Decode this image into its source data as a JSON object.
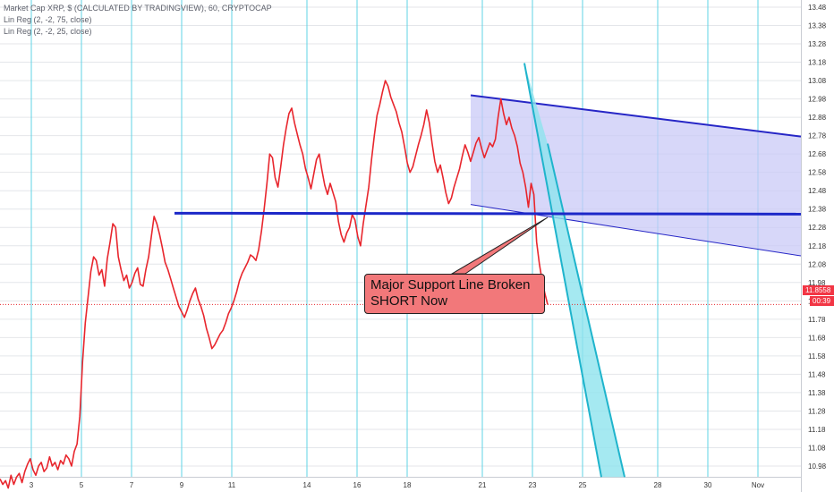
{
  "legend": {
    "main": "Market Cap XRP, $ (CALCULATED BY TRADINGVIEW), 60, CRYPTOCAP",
    "ind1": "Lin Reg (2, -2, 75, close)",
    "ind2": "Lin Reg (2, -2, 25, close)"
  },
  "annotation": {
    "line1": "Major Support Line Broken",
    "line2": "SHORT Now"
  },
  "price_tag": "11.8558",
  "time_tag": "00:39",
  "colors": {
    "price": "#e8262d",
    "grid": "#5fd3e6",
    "support": "#1c28c8",
    "channel_fill": "#c9c9f7",
    "cyan_fill": "#8ee3ee",
    "callout": "#f2787a"
  },
  "chart_data": {
    "type": "line",
    "series": [
      {
        "values": [
          10.91,
          10.88,
          10.9,
          10.86,
          10.93,
          10.88,
          10.92,
          10.94,
          10.89,
          10.95,
          10.99,
          11.02,
          10.96,
          10.93,
          10.98,
          11.0,
          10.95,
          10.97,
          11.03,
          10.98,
          11.0,
          10.96,
          11.01,
          10.99,
          11.04,
          11.02,
          10.98,
          11.06,
          11.1,
          11.25,
          11.55,
          11.76,
          11.9,
          12.04,
          12.12,
          12.1,
          12.02,
          12.05,
          11.96,
          12.11,
          12.2,
          12.3,
          12.28,
          12.12,
          12.05,
          11.99,
          12.02,
          11.95,
          11.98,
          12.03,
          12.06,
          11.97,
          11.96,
          12.05,
          12.12,
          12.23,
          12.34,
          12.3,
          12.24,
          12.17,
          12.09,
          12.05,
          12.0,
          11.95,
          11.9,
          11.85,
          11.82,
          11.79,
          11.83,
          11.88,
          11.92,
          11.95,
          11.89,
          11.85,
          11.8,
          11.73,
          11.68,
          11.62,
          11.64,
          11.67,
          11.7,
          11.72,
          11.76,
          11.81,
          11.84,
          11.88,
          11.93,
          11.99,
          12.03,
          12.06,
          12.09,
          12.13,
          12.12,
          12.1,
          12.16,
          12.26,
          12.38,
          12.52,
          12.68,
          12.66,
          12.55,
          12.5,
          12.61,
          12.73,
          12.82,
          12.9,
          12.93,
          12.85,
          12.79,
          12.73,
          12.68,
          12.6,
          12.55,
          12.49,
          12.57,
          12.65,
          12.68,
          12.59,
          12.51,
          12.46,
          12.52,
          12.47,
          12.42,
          12.31,
          12.24,
          12.2,
          12.25,
          12.28,
          12.35,
          12.32,
          12.23,
          12.18,
          12.3,
          12.4,
          12.5,
          12.65,
          12.78,
          12.89,
          12.95,
          13.02,
          13.08,
          13.05,
          12.99,
          12.95,
          12.91,
          12.85,
          12.8,
          12.72,
          12.63,
          12.58,
          12.61,
          12.67,
          12.73,
          12.78,
          12.84,
          12.92,
          12.85,
          12.74,
          12.64,
          12.58,
          12.62,
          12.55,
          12.47,
          12.41,
          12.44,
          12.5,
          12.55,
          12.6,
          12.67,
          12.73,
          12.69,
          12.64,
          12.69,
          12.74,
          12.77,
          12.71,
          12.66,
          12.7,
          12.74,
          12.72,
          12.76,
          12.88,
          12.98,
          12.9,
          12.84,
          12.88,
          12.82,
          12.78,
          12.72,
          12.63,
          12.58,
          12.5,
          12.39,
          12.52,
          12.46,
          12.2,
          12.08,
          11.99,
          11.92,
          11.86
        ]
      }
    ],
    "x_ticks": [
      "3",
      "5",
      "7",
      "9",
      "11",
      "14",
      "16",
      "18",
      "21",
      "23",
      "25",
      "28",
      "30",
      "Nov"
    ],
    "y_ticks": [
      "13.48",
      "13.38",
      "13.28",
      "13.18",
      "13.08",
      "12.98",
      "12.88",
      "12.78",
      "12.68",
      "12.58",
      "12.48",
      "12.38",
      "12.28",
      "12.18",
      "12.08",
      "11.98",
      "11.88",
      "11.78",
      "11.68",
      "11.58",
      "11.48",
      "11.38",
      "11.28",
      "11.18",
      "11.08",
      "10.98"
    ],
    "ylim": [
      10.92,
      13.55
    ],
    "grid": true,
    "overlays": {
      "support_level": 12.355,
      "channel_75": {
        "upper_start": 13.0,
        "upper_end": 12.775,
        "lower_start": 12.405,
        "lower_end": 12.125
      },
      "channel_25": {
        "start": 13.175,
        "end": 10.92
      }
    }
  }
}
